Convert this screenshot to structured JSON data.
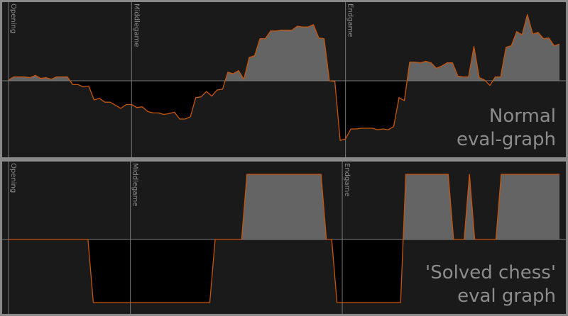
{
  "colors": {
    "frame": "#8a8a8a",
    "background": "#1a1a1a",
    "advantage_fill": "#646464",
    "disadvantage_fill": "#000000",
    "line": "#c8550a",
    "zero_line": "#7a7a7a",
    "text": "#8c8c8c"
  },
  "chart_data": [
    {
      "type": "area",
      "annotation": [
        "Normal",
        "eval-graph"
      ],
      "phases": [
        {
          "label": "Opening",
          "index": 0
        },
        {
          "label": "Middlegame",
          "index": 23
        },
        {
          "label": "Endgame",
          "index": 63
        }
      ],
      "ylim": [
        -1,
        1
      ],
      "values": [
        0.01,
        0.05,
        0.05,
        0.05,
        0.04,
        0.07,
        0.03,
        0.04,
        0.02,
        0.05,
        0.05,
        0.05,
        -0.05,
        -0.05,
        -0.08,
        -0.07,
        -0.25,
        -0.23,
        -0.28,
        -0.28,
        -0.32,
        -0.36,
        -0.31,
        -0.31,
        -0.35,
        -0.34,
        -0.4,
        -0.42,
        -0.42,
        -0.44,
        -0.43,
        -0.41,
        -0.5,
        -0.5,
        -0.47,
        -0.22,
        -0.21,
        -0.14,
        -0.2,
        -0.12,
        -0.11,
        0.11,
        0.09,
        0.13,
        0.02,
        0.3,
        0.32,
        0.54,
        0.54,
        0.64,
        0.64,
        0.65,
        0.65,
        0.65,
        0.7,
        0.69,
        0.69,
        0.72,
        0.55,
        0.54,
        0.0,
        -0.01,
        -0.78,
        -0.76,
        -0.63,
        -0.63,
        -0.62,
        -0.62,
        -0.62,
        -0.64,
        -0.63,
        -0.64,
        -0.6,
        -0.22,
        -0.26,
        0.24,
        0.24,
        0.23,
        0.25,
        0.23,
        0.16,
        0.19,
        0.23,
        0.23,
        0.06,
        0.05,
        0.05,
        0.44,
        0.04,
        0.01,
        -0.06,
        0.05,
        0.05,
        0.43,
        0.45,
        0.63,
        0.59,
        0.85,
        0.6,
        0.62,
        0.54,
        0.55,
        0.45,
        0.47
      ]
    },
    {
      "type": "area",
      "annotation": [
        "'Solved chess'",
        "eval graph"
      ],
      "phases": [
        {
          "label": "Opening",
          "index": 0
        },
        {
          "label": "Middlegame",
          "index": 23
        },
        {
          "label": "Endgame",
          "index": 63
        }
      ],
      "ylim": [
        -1,
        1
      ],
      "values": [
        0,
        0,
        0,
        0,
        0,
        0,
        0,
        0,
        0,
        0,
        0,
        0,
        0,
        0,
        0,
        0,
        -1,
        -1,
        -1,
        -1,
        -1,
        -1,
        -1,
        -1,
        -1,
        -1,
        -1,
        -1,
        -1,
        -1,
        -1,
        -1,
        -1,
        -1,
        -1,
        -1,
        -1,
        -1,
        -1,
        0,
        0,
        0,
        0,
        0,
        0,
        1,
        1,
        1,
        1,
        1,
        1,
        1,
        1,
        1,
        1,
        1,
        1,
        1,
        1,
        1,
        0,
        0,
        -1,
        -1,
        -1,
        -1,
        -1,
        -1,
        -1,
        -1,
        -1,
        -1,
        -1,
        -1,
        -1,
        1,
        1,
        1,
        1,
        1,
        1,
        1,
        1,
        1,
        0,
        0,
        0,
        1,
        0,
        0,
        0,
        0,
        0,
        1,
        1,
        1,
        1,
        1,
        1,
        1,
        1,
        1,
        1,
        1,
        1
      ]
    }
  ]
}
